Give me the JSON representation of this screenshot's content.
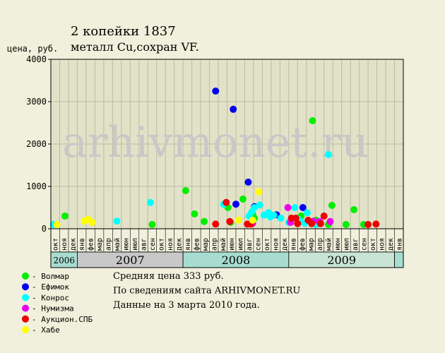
{
  "chart_data": {
    "type": "scatter",
    "title": "2 копейки 1837",
    "subtitle": "металл Cu,сохран VF.",
    "ylabel": "цена, руб.",
    "ylim": [
      0,
      4000
    ],
    "yticks": [
      0,
      1000,
      2000,
      3000,
      4000
    ],
    "grid": true,
    "watermark": "arhivmonet.ru",
    "months": [
      "окт",
      "ноя",
      "дек",
      "янв",
      "фев",
      "мар",
      "апр",
      "май",
      "июн",
      "июл",
      "авг",
      "сен",
      "окт",
      "ноя",
      "дек",
      "янв",
      "фев",
      "мар",
      "апр",
      "май",
      "июн",
      "июл",
      "авг",
      "сен",
      "окт",
      "ноя",
      "дек",
      "янв",
      "фев",
      "мар",
      "апр",
      "май",
      "июн",
      "июл",
      "авг",
      "сен",
      "окт",
      "ноя",
      "дек",
      "янв"
    ],
    "years": [
      {
        "label": "2006",
        "start": 0,
        "end": 3,
        "color": "#a8dcd0"
      },
      {
        "label": "2007",
        "start": 3,
        "end": 15,
        "color": "#c8c8c8"
      },
      {
        "label": "2008",
        "start": 15,
        "end": 27,
        "color": "#a8dcd0"
      },
      {
        "label": "2009",
        "start": 27,
        "end": 39,
        "color": "#c8e4d4"
      },
      {
        "label": "",
        "start": 39,
        "end": 40,
        "color": "#a8dcd0"
      }
    ],
    "series": [
      {
        "name": "Волмар",
        "color": "#00ee00",
        "points": [
          [
            1.6,
            300
          ],
          [
            11.5,
            100
          ],
          [
            15.3,
            900
          ],
          [
            16.3,
            350
          ],
          [
            17.4,
            170
          ],
          [
            20.1,
            500
          ],
          [
            20.4,
            150
          ],
          [
            21.8,
            700
          ],
          [
            22.9,
            350
          ],
          [
            23.1,
            250
          ],
          [
            28.4,
            300
          ],
          [
            29.3,
            180
          ],
          [
            29.7,
            2550
          ],
          [
            30.1,
            200
          ],
          [
            31.5,
            100
          ],
          [
            31.9,
            550
          ],
          [
            33.5,
            100
          ],
          [
            34.4,
            450
          ],
          [
            35.5,
            100
          ]
        ]
      },
      {
        "name": "Ефимок",
        "color": "#0000ee",
        "points": [
          [
            18.7,
            3250
          ],
          [
            20.7,
            2820
          ],
          [
            21.0,
            580
          ],
          [
            22.4,
            1100
          ],
          [
            22.8,
            130
          ],
          [
            23.1,
            520
          ],
          [
            25.6,
            330
          ],
          [
            28.6,
            500
          ]
        ]
      },
      {
        "name": "Конрос",
        "color": "#00ffff",
        "points": [
          [
            0.3,
            100
          ],
          [
            7.5,
            180
          ],
          [
            11.3,
            620
          ],
          [
            19.6,
            580
          ],
          [
            22.5,
            300
          ],
          [
            22.8,
            400
          ],
          [
            23.1,
            500
          ],
          [
            23.7,
            560
          ],
          [
            24.2,
            320
          ],
          [
            24.7,
            380
          ],
          [
            24.9,
            280
          ],
          [
            25.3,
            320
          ],
          [
            26.1,
            250
          ],
          [
            27.0,
            150
          ],
          [
            27.7,
            500
          ],
          [
            28.1,
            220
          ],
          [
            28.4,
            160
          ],
          [
            28.8,
            130
          ],
          [
            29.1,
            380
          ],
          [
            29.6,
            120
          ],
          [
            30.1,
            100
          ],
          [
            31.5,
            1750
          ]
        ]
      },
      {
        "name": "Нумизма",
        "color": "#ee00ee",
        "points": [
          [
            22.9,
            130
          ],
          [
            26.9,
            500
          ],
          [
            27.2,
            150
          ],
          [
            29.8,
            180
          ],
          [
            30.5,
            170
          ],
          [
            31.7,
            170
          ]
        ]
      },
      {
        "name": "Аукцион.СПБ",
        "color": "#ee0000",
        "points": [
          [
            18.7,
            110
          ],
          [
            19.9,
            620
          ],
          [
            20.3,
            170
          ],
          [
            22.3,
            110
          ],
          [
            22.7,
            110
          ],
          [
            27.3,
            250
          ],
          [
            27.8,
            250
          ],
          [
            28.0,
            120
          ],
          [
            29.2,
            200
          ],
          [
            29.6,
            120
          ],
          [
            30.6,
            120
          ],
          [
            31.0,
            300
          ],
          [
            36.0,
            100
          ],
          [
            36.9,
            110
          ]
        ]
      },
      {
        "name": "Хабе",
        "color": "#ffff00",
        "points": [
          [
            0.7,
            100
          ],
          [
            3.8,
            180
          ],
          [
            4.2,
            220
          ],
          [
            4.7,
            150
          ],
          [
            21.3,
            200
          ],
          [
            22.9,
            200
          ],
          [
            23.6,
            870
          ]
        ]
      }
    ],
    "info": [
      "Средняя цена 333 руб.",
      "По  сведениям сайта ARHIVMONET.RU",
      "Данные на 3 марта 2010 года."
    ]
  }
}
